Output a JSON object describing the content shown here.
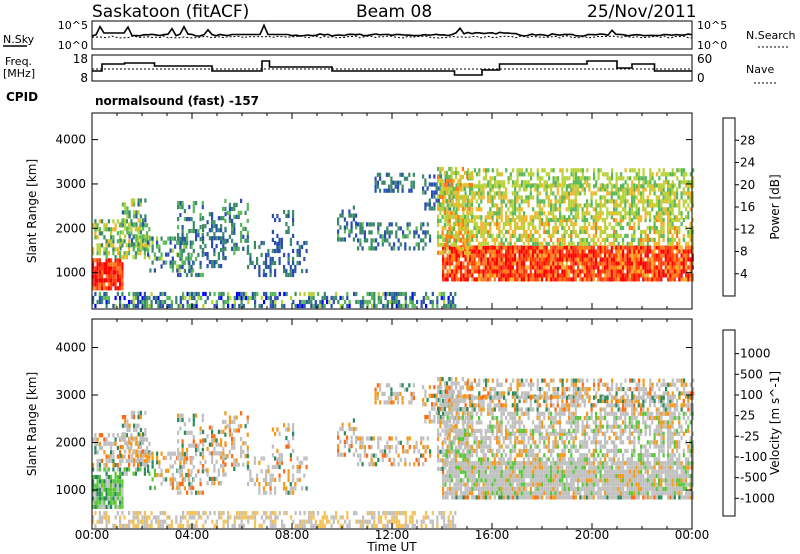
{
  "header": {
    "title": "Saskatoon (fitACF)",
    "beam": "Beam 08",
    "date": "25/Nov/2011"
  },
  "noise_panel": {
    "left_label": "N.Sky",
    "right_label": "N.Search",
    "left_ticks": [
      "10^5",
      "10^0"
    ],
    "right_ticks": [
      "10^5",
      "10^0"
    ]
  },
  "freq_panel": {
    "left_label_1": "Freq.",
    "left_label_2": "[MHz]",
    "right_label": "Nave",
    "left_ticks": [
      "18",
      "8"
    ],
    "right_ticks": [
      "60",
      "0"
    ]
  },
  "cpid": {
    "label": "CPID",
    "value": "normalsound (fast) -157"
  },
  "colors": {
    "power_scale": [
      "#0000ff",
      "#2a4fb0",
      "#3a8a6a",
      "#58b85a",
      "#b8d23a",
      "#f5b52a",
      "#ff7a1a",
      "#ff3a10",
      "#ff0000"
    ],
    "velocity_scale": [
      "#1a2aa0",
      "#2a5aa0",
      "#2a8a5a",
      "#5ac83a",
      "#c0c0c0",
      "#c0c0c0",
      "#f59a1a",
      "#ff6a10",
      "#ff2a00",
      "#ff0000"
    ]
  },
  "chart_data": [
    {
      "type": "heatmap",
      "title": "Power",
      "xlabel": "",
      "ylabel": "Slant Range [km]",
      "x_ticks": [
        "00:00",
        "04:00",
        "08:00",
        "12:00",
        "16:00",
        "20:00",
        "00:00"
      ],
      "y_ticks": [
        1000,
        2000,
        3000,
        4000
      ],
      "ylim": [
        180,
        4600
      ],
      "xlim_hours": [
        0,
        24
      ],
      "colorbar": {
        "label": "Power [dB]",
        "ticks": [
          4,
          8,
          12,
          16,
          20,
          24,
          28
        ],
        "range": [
          0,
          32
        ]
      }
    },
    {
      "type": "heatmap",
      "title": "Velocity",
      "xlabel": "Time UT",
      "ylabel": "Slant Range [km]",
      "x_ticks": [
        "00:00",
        "04:00",
        "08:00",
        "12:00",
        "16:00",
        "20:00",
        "00:00"
      ],
      "y_ticks": [
        1000,
        2000,
        3000,
        4000
      ],
      "ylim": [
        180,
        4600
      ],
      "xlim_hours": [
        0,
        24
      ],
      "colorbar": {
        "label": "Velocity [m s^-1]",
        "ticks": [
          "1000",
          "500",
          "100",
          "25",
          "-25",
          "-100",
          "-500",
          "-1000"
        ]
      }
    }
  ]
}
